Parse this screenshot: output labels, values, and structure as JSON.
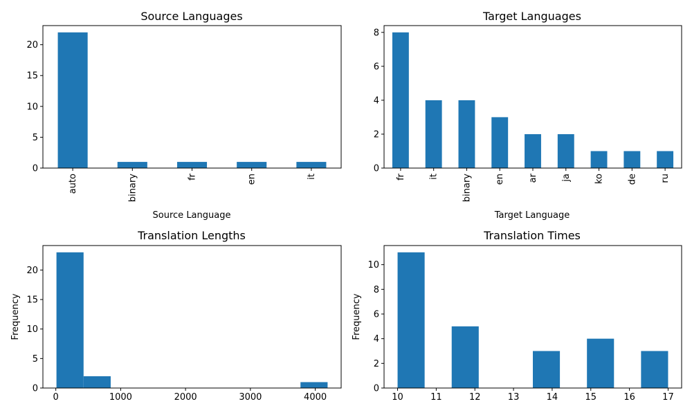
{
  "bar_color": "#1f77b4",
  "chart_data": [
    {
      "type": "bar",
      "title": "Source Languages",
      "xlabel": "Source Language",
      "ylabel": "",
      "categories": [
        "auto",
        "binary",
        "fr",
        "en",
        "it"
      ],
      "values": [
        22,
        1,
        1,
        1,
        1
      ],
      "ylim": [
        0,
        23.1
      ],
      "yticks": [
        0,
        5,
        10,
        15,
        20
      ],
      "grid": false
    },
    {
      "type": "bar",
      "title": "Target Languages",
      "xlabel": "Target Language",
      "ylabel": "",
      "categories": [
        "fr",
        "it",
        "binary",
        "en",
        "ar",
        "ja",
        "ko",
        "de",
        "ru"
      ],
      "values": [
        8,
        4,
        4,
        3,
        2,
        2,
        1,
        1,
        1
      ],
      "ylim": [
        0,
        8.4
      ],
      "yticks": [
        0,
        2,
        4,
        6,
        8
      ],
      "grid": false
    },
    {
      "type": "histogram",
      "title": "Translation Lengths",
      "xlabel": "",
      "ylabel": "Frequency",
      "bin_edges": [
        10,
        428,
        846,
        1264,
        1682,
        2100,
        2518,
        2936,
        3354,
        3772,
        4190
      ],
      "counts": [
        23,
        2,
        0,
        0,
        0,
        0,
        0,
        0,
        0,
        1
      ],
      "xlim": [
        -199,
        4399
      ],
      "ylim": [
        0,
        24.15
      ],
      "xticks": [
        0,
        1000,
        2000,
        3000,
        4000
      ],
      "yticks": [
        0,
        5,
        10,
        15,
        20
      ],
      "grid": false
    },
    {
      "type": "histogram",
      "title": "Translation Times",
      "xlabel": "",
      "ylabel": "Frequency",
      "bin_edges": [
        10,
        10.7,
        11.4,
        12.1,
        12.8,
        13.5,
        14.2,
        14.9,
        15.6,
        16.3,
        17
      ],
      "counts": [
        11,
        0,
        5,
        0,
        0,
        3,
        0,
        4,
        0,
        3
      ],
      "xlim": [
        9.65,
        17.35
      ],
      "ylim": [
        0,
        11.55
      ],
      "xticks": [
        10,
        11,
        12,
        13,
        14,
        15,
        16,
        17
      ],
      "yticks": [
        0,
        2,
        4,
        6,
        8,
        10
      ],
      "grid": false
    }
  ]
}
